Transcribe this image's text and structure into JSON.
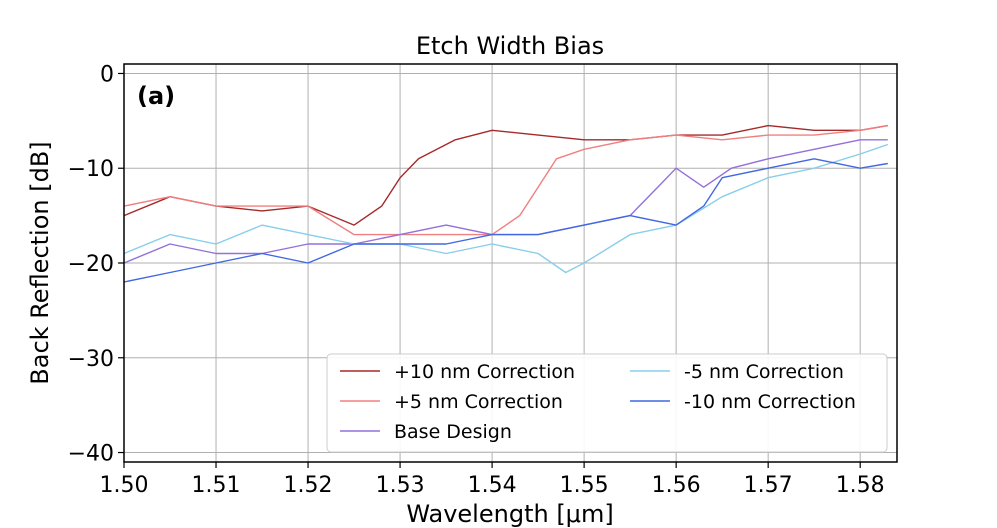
{
  "chart_data": {
    "type": "line",
    "title": "Etch Width Bias",
    "panel_label": "(a)",
    "xlabel": "Wavelength [μm]",
    "ylabel": "Back Reflection [dB]",
    "xlim": [
      1.5,
      1.584
    ],
    "ylim": [
      -41,
      1
    ],
    "xticks": [
      1.5,
      1.51,
      1.52,
      1.53,
      1.54,
      1.55,
      1.56,
      1.57,
      1.58
    ],
    "xtick_labels": [
      "1.50",
      "1.51",
      "1.52",
      "1.53",
      "1.54",
      "1.55",
      "1.56",
      "1.57",
      "1.58"
    ],
    "yticks": [
      0,
      -10,
      -20,
      -30,
      -40
    ],
    "ytick_labels": [
      "0",
      "−10",
      "−20",
      "−30",
      "−40"
    ],
    "grid": true,
    "legend_placement": "lower-right",
    "series": [
      {
        "name": "+10 nm Correction",
        "color": "#a52a2a",
        "x": [
          1.5,
          1.505,
          1.51,
          1.515,
          1.52,
          1.525,
          1.528,
          1.53,
          1.532,
          1.534,
          1.536,
          1.538,
          1.54,
          1.545,
          1.55,
          1.555,
          1.56,
          1.565,
          1.57,
          1.575,
          1.58,
          1.583
        ],
        "y": [
          -15,
          -13,
          -14,
          -14.5,
          -14,
          -16,
          -14,
          -11,
          -9,
          -8,
          -7,
          -6.5,
          -6,
          -6.5,
          -7,
          -7,
          -6.5,
          -6.5,
          -5.5,
          -6,
          -6,
          -5.5
        ]
      },
      {
        "name": "+5 nm Correction",
        "color": "#f08080",
        "x": [
          1.5,
          1.505,
          1.51,
          1.515,
          1.52,
          1.525,
          1.53,
          1.535,
          1.54,
          1.543,
          1.545,
          1.547,
          1.55,
          1.555,
          1.56,
          1.565,
          1.57,
          1.575,
          1.58,
          1.583
        ],
        "y": [
          -14,
          -13,
          -14,
          -14,
          -14,
          -17,
          -17,
          -17,
          -17,
          -15,
          -12,
          -9,
          -8,
          -7,
          -6.5,
          -7,
          -6.5,
          -6.5,
          -6,
          -5.5
        ]
      },
      {
        "name": "Base Design",
        "color": "#9370db",
        "x": [
          1.5,
          1.505,
          1.51,
          1.515,
          1.52,
          1.525,
          1.53,
          1.535,
          1.54,
          1.545,
          1.55,
          1.555,
          1.558,
          1.56,
          1.563,
          1.566,
          1.57,
          1.575,
          1.58,
          1.583
        ],
        "y": [
          -20,
          -18,
          -19,
          -19,
          -18,
          -18,
          -17,
          -16,
          -17,
          -17,
          -16,
          -15,
          -12,
          -10,
          -12,
          -10,
          -9,
          -8,
          -7,
          -7
        ]
      },
      {
        "name": "-5 nm Correction",
        "color": "#87ceeb",
        "x": [
          1.5,
          1.505,
          1.51,
          1.515,
          1.52,
          1.525,
          1.53,
          1.535,
          1.54,
          1.545,
          1.548,
          1.55,
          1.555,
          1.56,
          1.565,
          1.57,
          1.575,
          1.58,
          1.583
        ],
        "y": [
          -19,
          -17,
          -18,
          -16,
          -17,
          -18,
          -18,
          -19,
          -18,
          -19,
          -21,
          -20,
          -17,
          -16,
          -13,
          -11,
          -10,
          -8.5,
          -7.5
        ]
      },
      {
        "name": "-10 nm Correction",
        "color": "#4169e1",
        "x": [
          1.5,
          1.505,
          1.51,
          1.515,
          1.52,
          1.525,
          1.53,
          1.535,
          1.54,
          1.545,
          1.55,
          1.555,
          1.56,
          1.563,
          1.565,
          1.57,
          1.575,
          1.58,
          1.583
        ],
        "y": [
          -22,
          -21,
          -20,
          -19,
          -20,
          -18,
          -18,
          -18,
          -17,
          -17,
          -16,
          -15,
          -16,
          -14,
          -11,
          -10,
          -9,
          -10,
          -9.5
        ]
      }
    ]
  }
}
